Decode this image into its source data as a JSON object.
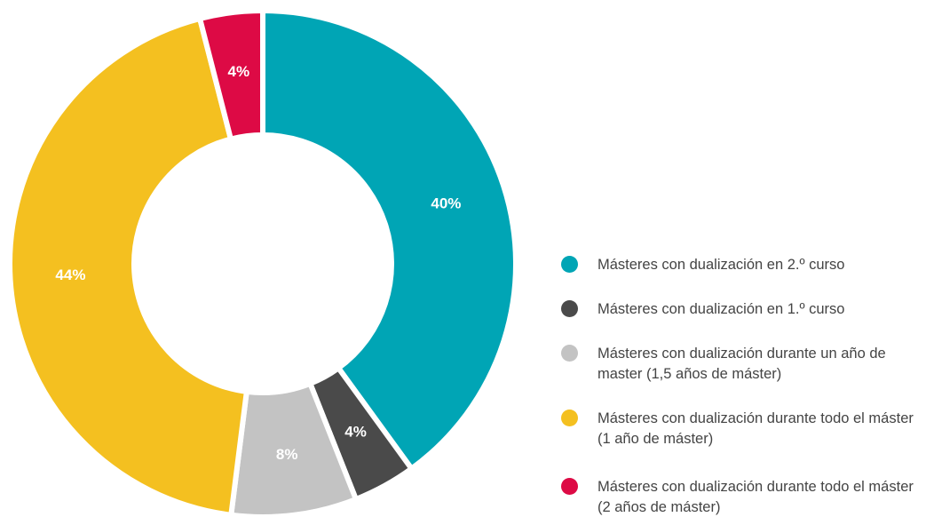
{
  "chart_data": {
    "type": "donut",
    "categories": [
      "Másteres con dualización en 2.º curso",
      "Másteres con dualización en 1.º curso",
      "Másteres con dualización durante un año de master (1,5 años de máster)",
      "Másteres con dualización durante todo el máster (1 año de máster)",
      "Másteres con dualización durante todo el máster (2 años de máster)"
    ],
    "values": [
      40,
      4,
      8,
      44,
      4
    ],
    "value_labels": [
      "40%",
      "4%",
      "8%",
      "44%",
      "4%"
    ],
    "colors": [
      "#00a5b5",
      "#4a4a4a",
      "#c3c3c3",
      "#f4c020",
      "#dd0a45"
    ],
    "legend": "right"
  }
}
